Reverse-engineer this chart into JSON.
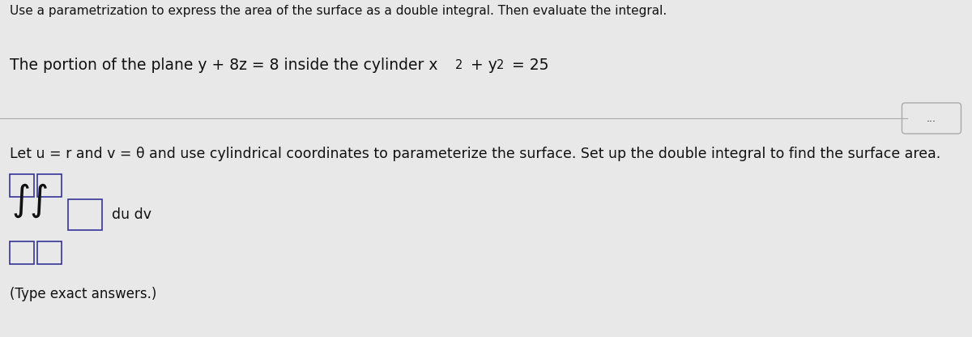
{
  "bg_color": "#e8e8e8",
  "text_color": "#111111",
  "top_text": "Use a parametrization to express the area of the surface as a double integral. Then evaluate the integral.",
  "line2_text": "Let u = r and v = θ and use cylindrical coordinates to parameterize the surface. Set up the double integral to find the surface area.",
  "dudv_text": "du dv",
  "type_exact_text": "(Type exact answers.)",
  "font_size_top": 11.0,
  "font_size_problem": 13.5,
  "font_size_line2": 12.5,
  "font_size_integral": 32,
  "font_size_dudv": 12.5,
  "font_size_type": 12.0,
  "box_color": "#333399",
  "divider_color": "#aaaaaa",
  "button_edge_color": "#aaaaaa"
}
